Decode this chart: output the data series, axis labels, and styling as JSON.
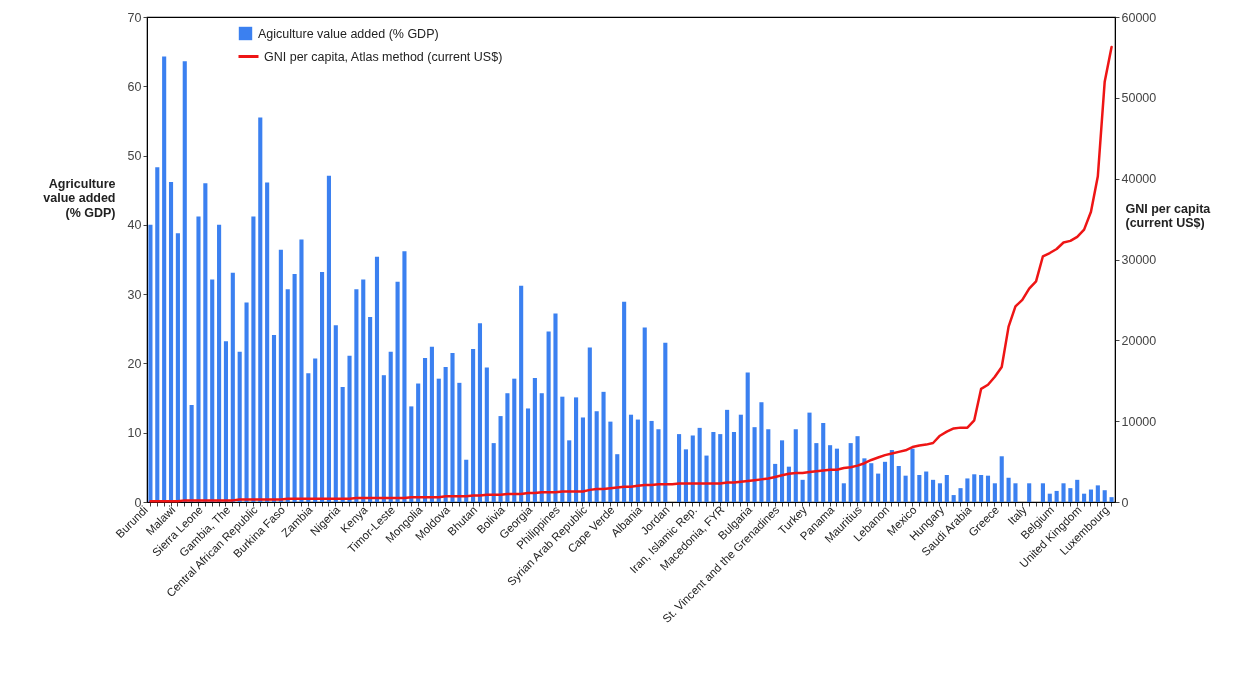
{
  "chart_data": {
    "type": "bar",
    "ylabel": "Agriculture value added (% GDP)",
    "y2label": "GNI per capita (current US$)",
    "categories": [
      "Burundi",
      null,
      null,
      null,
      "Malawi",
      null,
      null,
      null,
      "Sierra Leone",
      null,
      null,
      null,
      "Gambia, The",
      null,
      null,
      null,
      "Central African Republic",
      null,
      null,
      null,
      "Burkina Faso",
      null,
      null,
      null,
      "Zambia",
      null,
      null,
      null,
      "Nigeria",
      null,
      null,
      null,
      "Kenya",
      null,
      null,
      null,
      "Timor-Leste",
      null,
      null,
      null,
      "Mongolia",
      null,
      null,
      null,
      "Moldova",
      null,
      null,
      null,
      "Bhutan",
      null,
      null,
      null,
      "Bolivia",
      null,
      null,
      null,
      "Georgia",
      null,
      null,
      null,
      "Philippines",
      null,
      null,
      null,
      "Syrian Arab Republic",
      null,
      null,
      null,
      "Cape Verde",
      null,
      null,
      null,
      "Albania",
      null,
      null,
      null,
      "Jordan",
      null,
      null,
      null,
      "Iran, Islamic Rep.",
      null,
      null,
      null,
      "Macedonia, FYR",
      null,
      null,
      null,
      "Bulgaria",
      null,
      null,
      null,
      "St. Vincent and the Grenadines",
      null,
      null,
      null,
      "Turkey",
      null,
      null,
      null,
      "Panama",
      null,
      null,
      null,
      "Mauritius",
      null,
      null,
      null,
      "Lebanon",
      null,
      null,
      null,
      "Mexico",
      null,
      null,
      null,
      "Hungary",
      null,
      null,
      null,
      "Saudi Arabia",
      null,
      null,
      null,
      "Greece",
      null,
      null,
      null,
      "Italy",
      null,
      null,
      null,
      "Belgium",
      null,
      null,
      null,
      "United Kingdom",
      null,
      null,
      null,
      "Luxembourg"
    ],
    "series": [
      {
        "name": "Agiculture value added (% GDP)",
        "color": "#3b80f0",
        "values": [
          40.0,
          48.3,
          64.3,
          46.2,
          38.8,
          63.6,
          14.0,
          41.2,
          46.0,
          32.1,
          40.0,
          23.2,
          33.1,
          21.7,
          28.8,
          41.2,
          55.5,
          46.1,
          24.1,
          36.4,
          30.7,
          32.9,
          37.9,
          18.6,
          20.7,
          33.2,
          47.1,
          25.5,
          16.6,
          21.1,
          30.7,
          32.1,
          26.7,
          35.4,
          18.3,
          21.7,
          31.8,
          36.2,
          13.8,
          17.1,
          20.8,
          22.4,
          17.8,
          19.5,
          21.5,
          17.2,
          6.1,
          22.1,
          25.8,
          19.4,
          8.5,
          12.4,
          15.7,
          17.8,
          31.2,
          13.5,
          17.9,
          15.7,
          24.6,
          27.2,
          15.2,
          8.9,
          15.1,
          12.2,
          22.3,
          13.1,
          15.9,
          11.6,
          6.9,
          28.9,
          12.6,
          11.9,
          25.2,
          11.7,
          10.5,
          23.0,
          null,
          9.8,
          7.6,
          9.6,
          10.7,
          6.7,
          10.1,
          9.8,
          13.3,
          10.1,
          12.6,
          18.7,
          10.8,
          14.4,
          10.5,
          5.5,
          8.9,
          5.1,
          10.5,
          3.2,
          12.9,
          8.5,
          11.4,
          8.2,
          7.7,
          2.7,
          8.5,
          9.5,
          6.3,
          5.6,
          4.1,
          5.8,
          7.5,
          5.2,
          3.8,
          7.7,
          3.9,
          4.4,
          3.2,
          2.7,
          3.9,
          1.0,
          2.0,
          3.4,
          4.0,
          3.9,
          3.8,
          2.7,
          6.6,
          3.5,
          2.7,
          null,
          2.7,
          null,
          2.7,
          1.2,
          1.6,
          2.7,
          2.0,
          3.2,
          1.2,
          1.8,
          2.4,
          1.7,
          0.7
        ]
      },
      {
        "name": "GNI per capita, Atlas method (current US$)",
        "type": "line",
        "axis": "y2",
        "color": "#ee1515",
        "values": [
          100,
          100,
          100,
          100,
          100,
          200,
          200,
          200,
          200,
          200,
          200,
          200,
          200,
          300,
          300,
          300,
          300,
          300,
          300,
          300,
          400,
          400,
          400,
          400,
          400,
          400,
          400,
          400,
          400,
          400,
          500,
          500,
          500,
          500,
          500,
          500,
          500,
          500,
          600,
          600,
          600,
          600,
          600,
          700,
          700,
          700,
          700,
          800,
          800,
          900,
          900,
          900,
          1000,
          1000,
          1000,
          1100,
          1100,
          1200,
          1200,
          1200,
          1300,
          1300,
          1300,
          1300,
          1500,
          1600,
          1600,
          1700,
          1800,
          1900,
          1900,
          2000,
          2100,
          2100,
          2200,
          2200,
          2200,
          2300,
          2300,
          2300,
          2300,
          2300,
          2300,
          2300,
          2400,
          2400,
          2500,
          2600,
          2700,
          2800,
          2900,
          3100,
          3300,
          3500,
          3600,
          3600,
          3700,
          3800,
          3900,
          4000,
          4000,
          4200,
          4300,
          4500,
          4800,
          5200,
          5500,
          5800,
          6000,
          6200,
          6400,
          6800,
          7000,
          7100,
          7300,
          8200,
          8700,
          9100,
          9200,
          9200,
          10100,
          14000,
          14500,
          15500,
          16700,
          21700,
          24200,
          25000,
          26400,
          27300,
          30400,
          30800,
          31300,
          32100,
          32300,
          32800,
          33700,
          35900,
          40300,
          52000,
          56300
        ]
      }
    ],
    "ylim": [
      0,
      70
    ],
    "yticks": [
      0,
      10,
      20,
      30,
      40,
      50,
      60,
      70
    ],
    "y2lim": [
      0,
      60000
    ],
    "y2ticks": [
      0,
      10000,
      20000,
      30000,
      40000,
      50000,
      60000
    ],
    "legend": "top left"
  }
}
